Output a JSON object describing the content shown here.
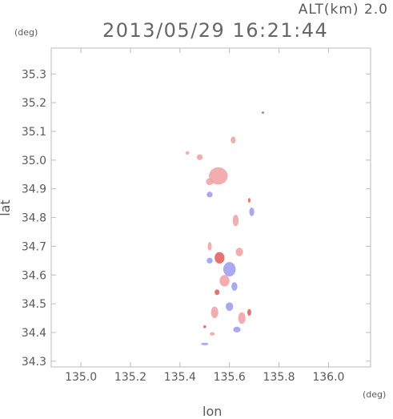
{
  "header": {
    "altitude_label": "ALT(km) 2.0",
    "datetime": "2013/05/29 16:21:44"
  },
  "axes": {
    "x_unit": "(deg)",
    "y_unit": "(deg)",
    "x_label": "lon",
    "y_label": "lat"
  },
  "chart_data": {
    "type": "scatter",
    "xlabel": "lon",
    "ylabel": "lat",
    "xlim": [
      134.88,
      136.17
    ],
    "ylim": [
      34.28,
      35.39
    ],
    "x_ticks": [
      135.0,
      135.2,
      135.4,
      135.6,
      135.8,
      136.0
    ],
    "y_ticks": [
      34.3,
      34.4,
      34.5,
      34.6,
      34.7,
      34.8,
      34.9,
      35.0,
      35.1,
      35.2,
      35.3
    ],
    "x_tick_labels": [
      "135.0",
      "135.2",
      "135.4",
      "135.6",
      "135.8",
      "136.0"
    ],
    "y_tick_labels": [
      "34.3",
      "34.4",
      "34.5",
      "34.6",
      "34.7",
      "34.8",
      "34.9",
      "35.0",
      "35.1",
      "35.2",
      "35.3"
    ],
    "grid": false,
    "colors": {
      "positive": "#f0a0a0",
      "negative": "#9a9aee",
      "strong_positive": "#e05a5a",
      "axis": "#bbbbbb"
    },
    "blobs": [
      {
        "lon": 135.555,
        "lat": 34.945,
        "r_lon": 0.038,
        "r_lat": 0.03,
        "polarity": "positive"
      },
      {
        "lon": 135.52,
        "lat": 34.925,
        "r_lon": 0.015,
        "r_lat": 0.012,
        "polarity": "positive"
      },
      {
        "lon": 135.48,
        "lat": 35.01,
        "r_lon": 0.012,
        "r_lat": 0.01,
        "polarity": "positive"
      },
      {
        "lon": 135.43,
        "lat": 35.025,
        "r_lon": 0.008,
        "r_lat": 0.006,
        "polarity": "positive"
      },
      {
        "lon": 135.615,
        "lat": 35.07,
        "r_lon": 0.01,
        "r_lat": 0.012,
        "polarity": "positive"
      },
      {
        "lon": 135.735,
        "lat": 35.165,
        "r_lon": 0.005,
        "r_lat": 0.004,
        "polarity": "strong_positive"
      },
      {
        "lon": 135.52,
        "lat": 34.88,
        "r_lon": 0.012,
        "r_lat": 0.01,
        "polarity": "negative"
      },
      {
        "lon": 135.625,
        "lat": 34.79,
        "r_lon": 0.012,
        "r_lat": 0.02,
        "polarity": "positive"
      },
      {
        "lon": 135.69,
        "lat": 34.82,
        "r_lon": 0.01,
        "r_lat": 0.015,
        "polarity": "negative"
      },
      {
        "lon": 135.68,
        "lat": 34.86,
        "r_lon": 0.004,
        "r_lat": 0.008,
        "polarity": "strong_positive"
      },
      {
        "lon": 135.52,
        "lat": 34.7,
        "r_lon": 0.008,
        "r_lat": 0.015,
        "polarity": "positive"
      },
      {
        "lon": 135.52,
        "lat": 34.65,
        "r_lon": 0.012,
        "r_lat": 0.01,
        "polarity": "negative"
      },
      {
        "lon": 135.56,
        "lat": 34.66,
        "r_lon": 0.02,
        "r_lat": 0.02,
        "polarity": "strong_positive"
      },
      {
        "lon": 135.6,
        "lat": 34.62,
        "r_lon": 0.025,
        "r_lat": 0.025,
        "polarity": "negative"
      },
      {
        "lon": 135.64,
        "lat": 34.68,
        "r_lon": 0.015,
        "r_lat": 0.015,
        "polarity": "positive"
      },
      {
        "lon": 135.58,
        "lat": 34.58,
        "r_lon": 0.02,
        "r_lat": 0.02,
        "polarity": "positive"
      },
      {
        "lon": 135.62,
        "lat": 34.56,
        "r_lon": 0.012,
        "r_lat": 0.015,
        "polarity": "negative"
      },
      {
        "lon": 135.55,
        "lat": 34.54,
        "r_lon": 0.01,
        "r_lat": 0.01,
        "polarity": "strong_positive"
      },
      {
        "lon": 135.54,
        "lat": 34.47,
        "r_lon": 0.015,
        "r_lat": 0.02,
        "polarity": "positive"
      },
      {
        "lon": 135.6,
        "lat": 34.49,
        "r_lon": 0.015,
        "r_lat": 0.015,
        "polarity": "negative"
      },
      {
        "lon": 135.65,
        "lat": 34.45,
        "r_lon": 0.015,
        "r_lat": 0.02,
        "polarity": "positive"
      },
      {
        "lon": 135.68,
        "lat": 34.47,
        "r_lon": 0.008,
        "r_lat": 0.012,
        "polarity": "strong_positive"
      },
      {
        "lon": 135.63,
        "lat": 34.41,
        "r_lon": 0.015,
        "r_lat": 0.01,
        "polarity": "negative"
      },
      {
        "lon": 135.5,
        "lat": 34.42,
        "r_lon": 0.006,
        "r_lat": 0.005,
        "polarity": "strong_positive"
      },
      {
        "lon": 135.53,
        "lat": 34.395,
        "r_lon": 0.01,
        "r_lat": 0.006,
        "polarity": "positive"
      },
      {
        "lon": 135.5,
        "lat": 34.36,
        "r_lon": 0.015,
        "r_lat": 0.004,
        "polarity": "negative"
      }
    ]
  }
}
